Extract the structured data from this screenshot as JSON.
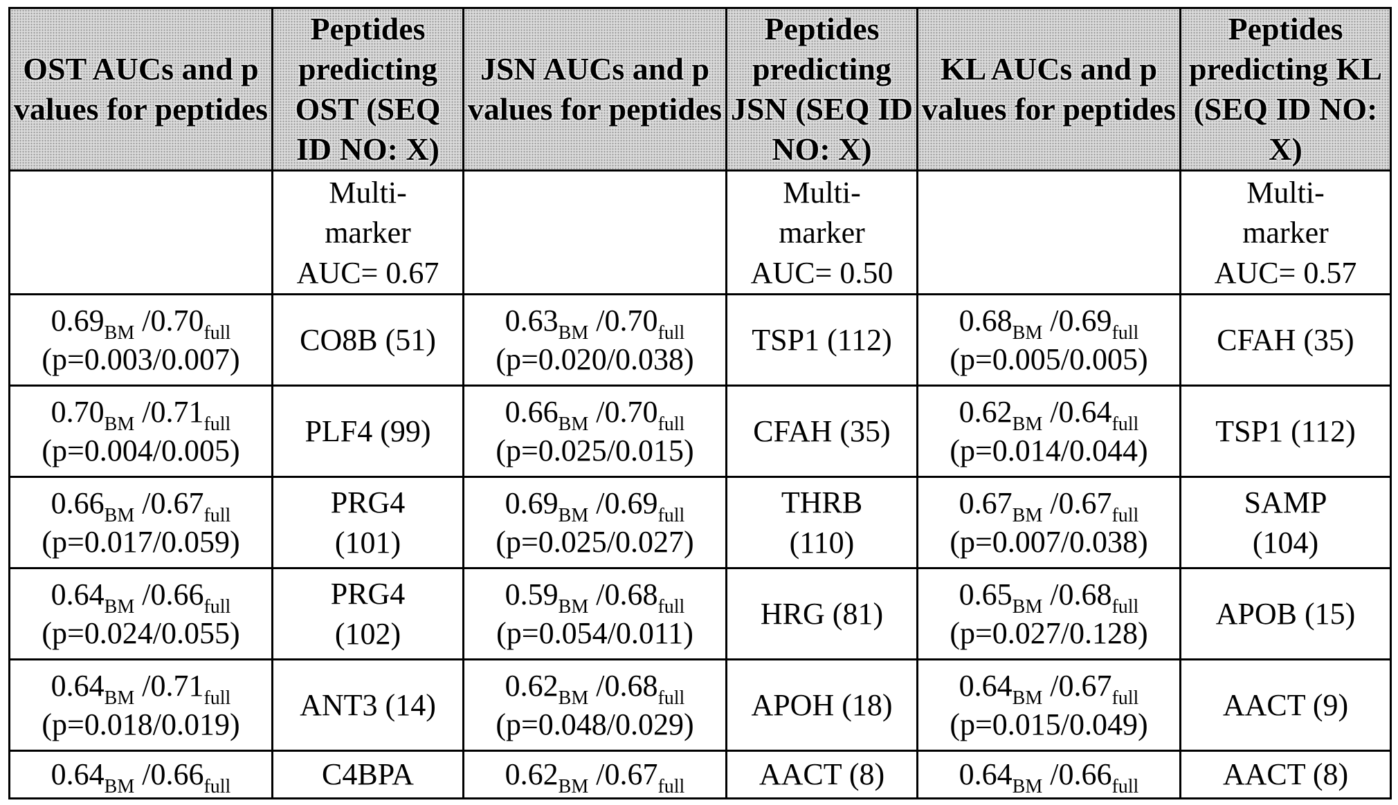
{
  "headers": [
    "OST AUCs and p values for peptides",
    "Peptides predicting OST (SEQ ID NO: X)",
    "JSN AUCs and p values for peptides",
    "Peptides predicting JSN (SEQ ID NO: X)",
    "KL AUCs and p values for peptides",
    "Peptides predicting KL (SEQ ID NO: X)"
  ],
  "multimarker": [
    "Multi-\nmarker\nAUC= 0.67",
    "Multi-\nmarker\nAUC= 0.50",
    "Multi-\nmarker\nAUC= 0.57"
  ],
  "sub_bm": "BM",
  "sub_full": "full",
  "rows": [
    {
      "ost": {
        "bm": "0.69",
        "full": "/0.70",
        "p": "(p=0.003/0.007)"
      },
      "ost_pep": "CO8B (51)",
      "jsn": {
        "bm": "0.63",
        "full": "/0.70",
        "p": "(p=0.020/0.038)"
      },
      "jsn_pep": "TSP1 (112)",
      "kl": {
        "bm": "0.68",
        "full": "/0.69",
        "p": "(p=0.005/0.005)"
      },
      "kl_pep": "CFAH (35)"
    },
    {
      "ost": {
        "bm": "0.70",
        "full": "/0.71",
        "p": "(p=0.004/0.005)"
      },
      "ost_pep": "PLF4 (99)",
      "jsn": {
        "bm": "0.66",
        "full": "/0.70",
        "p": "(p=0.025/0.015)"
      },
      "jsn_pep": "CFAH (35)",
      "kl": {
        "bm": "0.62",
        "full": "/0.64",
        "p": "(p=0.014/0.044)"
      },
      "kl_pep": "TSP1 (112)"
    },
    {
      "ost": {
        "bm": "0.66",
        "full": "/0.67",
        "p": "(p=0.017/0.059)"
      },
      "ost_pep": "PRG4\n(101)",
      "jsn": {
        "bm": "0.69",
        "full": "/0.69",
        "p": "(p=0.025/0.027)"
      },
      "jsn_pep": "THRB\n(110)",
      "kl": {
        "bm": "0.67",
        "full": "/0.67",
        "p": "(p=0.007/0.038)"
      },
      "kl_pep": "SAMP\n(104)"
    },
    {
      "ost": {
        "bm": "0.64",
        "full": "/0.66",
        "p": "(p=0.024/0.055)"
      },
      "ost_pep": "PRG4\n(102)",
      "jsn": {
        "bm": "0.59",
        "full": "/0.68",
        "p": "(p=0.054/0.011)"
      },
      "jsn_pep": "HRG (81)",
      "kl": {
        "bm": "0.65",
        "full": "/0.68",
        "p": "(p=0.027/0.128)"
      },
      "kl_pep": "APOB (15)"
    },
    {
      "ost": {
        "bm": "0.64",
        "full": "/0.71",
        "p": "(p=0.018/0.019)"
      },
      "ost_pep": "ANT3 (14)",
      "jsn": {
        "bm": "0.62",
        "full": "/0.68",
        "p": "(p=0.048/0.029)"
      },
      "jsn_pep": "APOH (18)",
      "kl": {
        "bm": "0.64",
        "full": "/0.67",
        "p": "(p=0.015/0.049)"
      },
      "kl_pep": "AACT (9)"
    }
  ],
  "last_row": {
    "ost": {
      "bm": "0.64",
      "full": "/0.66"
    },
    "ost_pep": "C4BPA",
    "jsn": {
      "bm": "0.62",
      "full": "/0.67"
    },
    "jsn_pep": "AACT (8)",
    "kl": {
      "bm": "0.64",
      "full": "/0.66"
    },
    "kl_pep": "AACT (8)"
  }
}
